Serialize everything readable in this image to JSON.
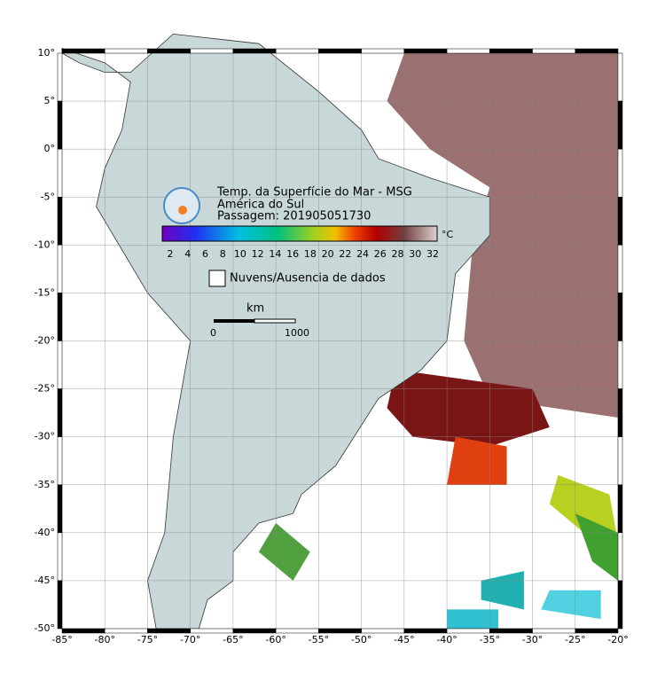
{
  "legend": {
    "title_lines": [
      "Temp. da Superfície do Mar - MSG",
      "América do Sul",
      "Passagem: 201905051730"
    ],
    "colorbar": {
      "ticks": [
        2,
        4,
        6,
        8,
        10,
        12,
        14,
        16,
        18,
        20,
        22,
        24,
        26,
        28,
        30,
        32
      ],
      "unit": "°C"
    },
    "no_data_label": "Nuvens/Ausencia de dados",
    "scale_bar": {
      "unit": "km",
      "labels": [
        "0",
        "1000"
      ]
    }
  },
  "axes": {
    "longitude_labels": [
      "-85°",
      "-80°",
      "-75°",
      "-70°",
      "-65°",
      "-60°",
      "-55°",
      "-50°",
      "-45°",
      "-40°",
      "-35°",
      "-30°",
      "-25°",
      "-20°"
    ],
    "latitude_labels": [
      "10°",
      "5°",
      "0°",
      "-5°",
      "-10°",
      "-15°",
      "-20°",
      "-25°",
      "-30°",
      "-35°",
      "-40°",
      "-45°",
      "-50°"
    ]
  }
}
